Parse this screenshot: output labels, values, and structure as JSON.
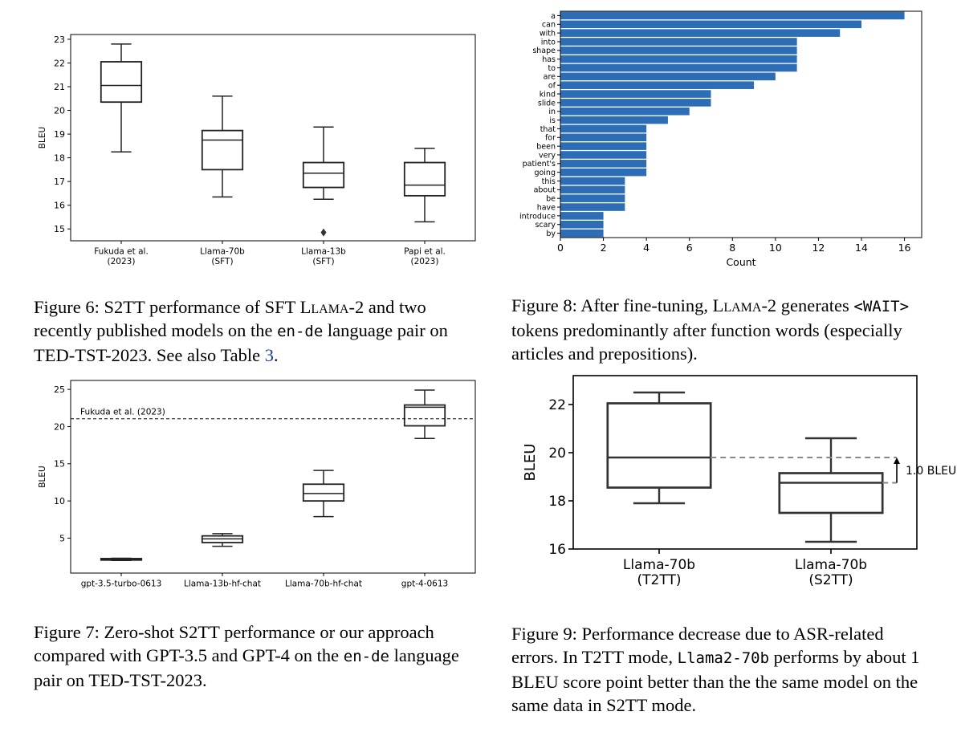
{
  "figures": [
    {
      "id": "fig6",
      "caption": {
        "p1": "Figure 6: S2TT performance of SFT ",
        "p2": "Llama",
        "p3": "-2 and two recently published models on the ",
        "p4": "en-de",
        "p5": " language pair on TED-TST-2023. See also Table ",
        "p6": "3",
        "p7": "."
      }
    },
    {
      "id": "fig7",
      "caption": {
        "p1": "Figure 7: Zero-shot S2TT performance or our approach compared with GPT-3.5 and GPT-4 on the ",
        "p2": "en-de",
        "p3": " language pair on TED-TST-2023."
      }
    },
    {
      "id": "fig8",
      "caption": {
        "p1": "Figure 8: After fine-tuning, ",
        "p2": "Llama",
        "p3": "-2 generates ",
        "p4": "<WAIT>",
        "p5": " tokens predominantly after function words (especially articles and prepositions)."
      }
    },
    {
      "id": "fig9",
      "caption": {
        "p1": "Figure 9: Performance decrease due to ASR-related errors. In T2TT mode, ",
        "p2": "Llama2-70b",
        "p3": " performs by about 1 BLEU score point better than the the same model on the same data in S2TT mode."
      }
    }
  ],
  "chart_data": [
    {
      "id": "fig6",
      "type": "box",
      "ylabel": "BLEU",
      "xlabel": "",
      "ylim": [
        14.5,
        23.2
      ],
      "yticks": [
        15,
        16,
        17,
        18,
        19,
        20,
        21,
        22,
        23
      ],
      "grid": false,
      "categories": [
        [
          "Fukuda et al.",
          "(2023)"
        ],
        [
          "Llama-70b",
          "(SFT)"
        ],
        [
          "Llama-13b",
          "(SFT)"
        ],
        [
          "Papi et al.",
          "(2023)"
        ]
      ],
      "boxes": [
        {
          "whislo": 18.25,
          "q1": 20.35,
          "med": 21.05,
          "q3": 22.05,
          "whishi": 22.8,
          "fliers": []
        },
        {
          "whislo": 16.35,
          "q1": 17.5,
          "med": 18.75,
          "q3": 19.15,
          "whishi": 20.6,
          "fliers": []
        },
        {
          "whislo": 16.25,
          "q1": 16.75,
          "med": 17.35,
          "q3": 17.8,
          "whishi": 19.3,
          "fliers": [
            14.85
          ]
        },
        {
          "whislo": 15.3,
          "q1": 16.4,
          "med": 16.85,
          "q3": 17.8,
          "whishi": 18.4,
          "fliers": []
        }
      ],
      "reference_line": null,
      "annotation": null
    },
    {
      "id": "fig7",
      "type": "box",
      "ylabel": "BLEU",
      "xlabel": "",
      "ylim": [
        0.3,
        26.2
      ],
      "yticks": [
        5,
        10,
        15,
        20,
        25
      ],
      "grid": false,
      "categories": [
        [
          "gpt-3.5-turbo-0613"
        ],
        [
          "Llama-13b-hf-chat"
        ],
        [
          "Llama-70b-hf-chat"
        ],
        [
          "gpt-4-0613"
        ]
      ],
      "boxes": [
        {
          "whislo": 2.0,
          "q1": 2.05,
          "med": 2.15,
          "q3": 2.25,
          "whishi": 2.3,
          "fliers": []
        },
        {
          "whislo": 3.9,
          "q1": 4.4,
          "med": 4.9,
          "q3": 5.3,
          "whishi": 5.6,
          "fliers": []
        },
        {
          "whislo": 7.9,
          "q1": 10.0,
          "med": 11.0,
          "q3": 12.25,
          "whishi": 14.1,
          "fliers": []
        },
        {
          "whislo": 18.4,
          "q1": 20.1,
          "med": 22.6,
          "q3": 22.9,
          "whishi": 24.9,
          "fliers": []
        }
      ],
      "reference_line": {
        "y": 21.05,
        "label": "Fukuda et al. (2023)",
        "style": "dashed"
      },
      "annotation": null
    },
    {
      "id": "fig8",
      "type": "bar",
      "orientation": "horizontal",
      "xlabel": "Count",
      "ylabel": "",
      "xlim": [
        0,
        16.8
      ],
      "xticks": [
        0,
        2,
        4,
        6,
        8,
        10,
        12,
        14,
        16
      ],
      "grid": false,
      "color": "#2d6db5",
      "categories": [
        "a",
        "can",
        "with",
        "into",
        "shape",
        "has",
        "to",
        "are",
        "of",
        "kind",
        "slide",
        "in",
        "is",
        "that",
        "for",
        "been",
        "very",
        "patient's",
        "going",
        "this",
        "about",
        "be",
        "have",
        "introduce",
        "scary",
        "by"
      ],
      "values": [
        16,
        14,
        13,
        11,
        11,
        11,
        11,
        10,
        9,
        7,
        7,
        6,
        5,
        4,
        4,
        4,
        4,
        4,
        4,
        3,
        3,
        3,
        3,
        2,
        2,
        2
      ]
    },
    {
      "id": "fig9",
      "type": "box",
      "ylabel": "BLEU",
      "xlabel": "",
      "ylim": [
        16,
        23.2
      ],
      "yticks": [
        16,
        18,
        20,
        22
      ],
      "grid": false,
      "categories": [
        [
          "Llama-70b",
          "(T2TT)"
        ],
        [
          "Llama-70b",
          "(S2TT)"
        ]
      ],
      "boxes": [
        {
          "whislo": 17.9,
          "q1": 18.55,
          "med": 19.8,
          "q3": 22.05,
          "whishi": 22.5,
          "fliers": []
        },
        {
          "whislo": 16.3,
          "q1": 17.5,
          "med": 18.75,
          "q3": 19.15,
          "whishi": 20.6,
          "fliers": []
        }
      ],
      "reference_line": null,
      "annotation": {
        "label": "1.0 BLEU",
        "from": 18.75,
        "to": 19.8,
        "style": "dashed-arrow"
      }
    }
  ]
}
